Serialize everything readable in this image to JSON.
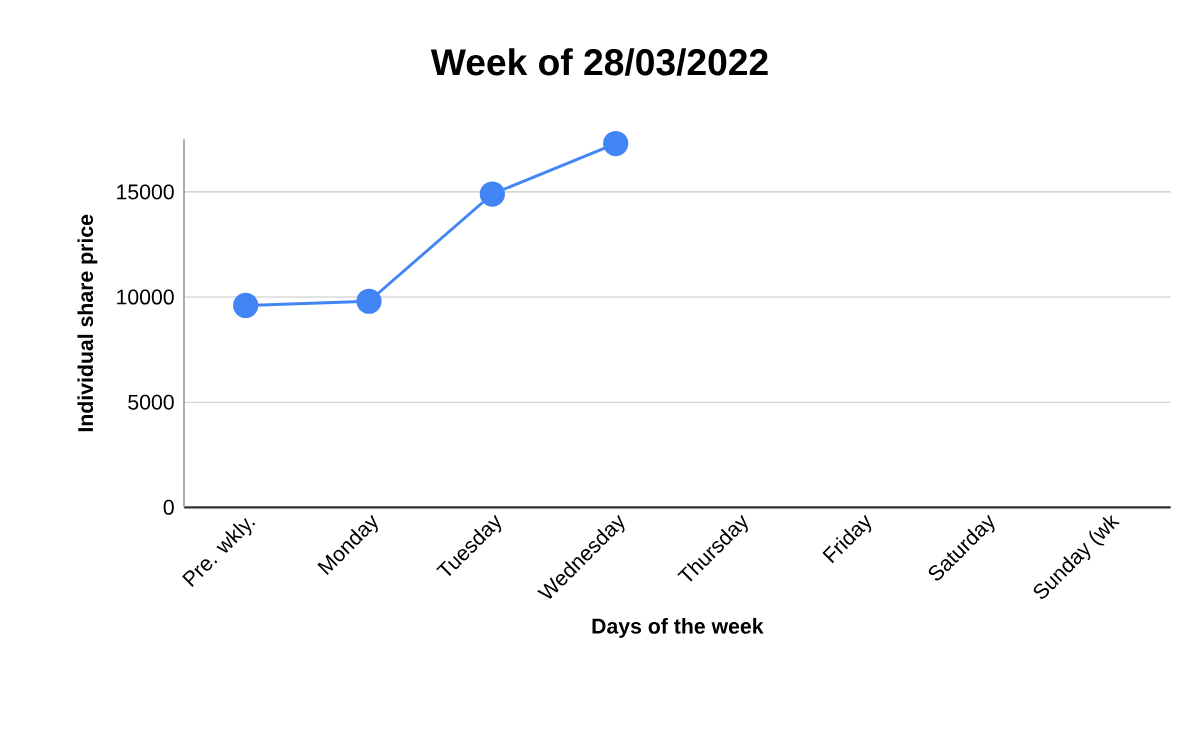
{
  "chart_data": {
    "type": "line",
    "title": "Week of 28/03/2022",
    "xlabel": "Days of the week",
    "ylabel": "Individual share price",
    "categories": [
      "Pre. wkly.",
      "Monday",
      "Tuesday",
      "Wednesday",
      "Thursday",
      "Friday",
      "Saturday",
      "Sunday (wk"
    ],
    "series": [
      {
        "color": "#4285f4",
        "values": [
          9600,
          9800,
          14900,
          17300,
          null,
          null,
          null,
          null
        ]
      }
    ],
    "ylim": [
      0,
      17500
    ],
    "yticks": [
      0,
      5000,
      10000,
      15000
    ],
    "grid": "y",
    "marker": "circle",
    "line_style": "solid"
  }
}
